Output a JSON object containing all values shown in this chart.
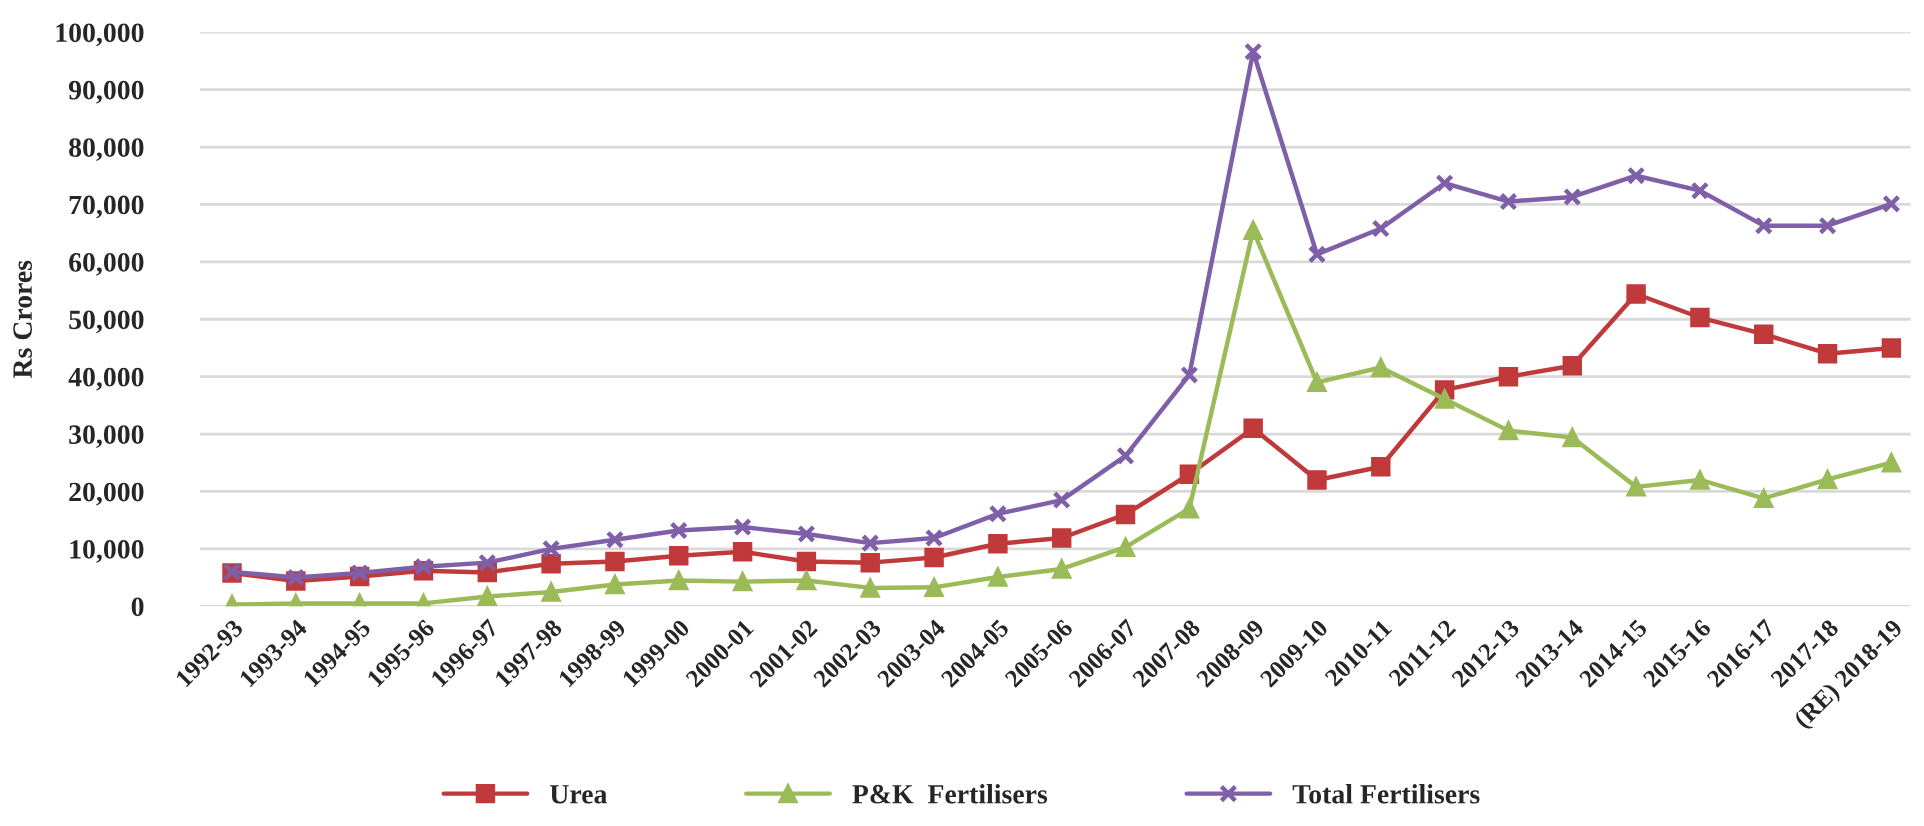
{
  "chart_data": {
    "type": "line",
    "ylabel": "Rs Crores",
    "categories": [
      "1992-93",
      "1993-94",
      "1994-95",
      "1995-96",
      "1996-97",
      "1997-98",
      "1998-99",
      "1999-00",
      "2000-01",
      "2001-02",
      "2002-03",
      "2003-04",
      "2004-05",
      "2005-06",
      "2006-07",
      "2007-08",
      "2008-09",
      "2009-10",
      "2010-11",
      "2011-12",
      "2012-13",
      "2013-14",
      "2014-15",
      "2015-16",
      "2016-17",
      "2017-18",
      "(RE) 2018-19"
    ],
    "series": [
      {
        "name": "Urea",
        "color": "#c0393b",
        "marker": "square",
        "values": [
          5800,
          4400,
          5200,
          6200,
          5900,
          7400,
          7800,
          8800,
          9500,
          7800,
          7600,
          8500,
          10900,
          11900,
          16000,
          23000,
          31000,
          22000,
          24300,
          37700,
          40000,
          41900,
          54400,
          50300,
          47400,
          44000,
          45000
        ]
      },
      {
        "name": "P&K  Fertilisers",
        "color": "#9bbb59",
        "marker": "triangle",
        "values": [
          300,
          500,
          500,
          500,
          1700,
          2500,
          3800,
          4500,
          4300,
          4500,
          3200,
          3300,
          5100,
          6500,
          10300,
          17000,
          65500,
          39000,
          41600,
          36100,
          30600,
          29400,
          20800,
          22000,
          18800,
          22100,
          25000
        ]
      },
      {
        "name": "Total Fertilisers",
        "color": "#7f5fa8",
        "marker": "cross",
        "values": [
          6000,
          5000,
          5800,
          6900,
          7600,
          10000,
          11600,
          13200,
          13800,
          12600,
          11000,
          11900,
          16100,
          18500,
          26200,
          40300,
          96600,
          61300,
          65800,
          73700,
          70500,
          71300,
          75000,
          72400,
          66300,
          66300,
          70100
        ]
      }
    ],
    "ylim": [
      0,
      100000
    ],
    "yticks": [
      0,
      {
        "value": 10000,
        "label": "10,000"
      },
      {
        "value": 20000,
        "label": "20,000"
      },
      {
        "value": 30000,
        "label": "30,000"
      },
      {
        "value": 40000,
        "label": "40,000"
      },
      {
        "value": 50000,
        "label": "50,000"
      },
      {
        "value": 60000,
        "label": "60,000"
      },
      {
        "value": 70000,
        "label": "70,000"
      },
      {
        "value": 80000,
        "label": "80,000"
      },
      {
        "value": 90000,
        "label": "90,000"
      },
      {
        "value": 100000,
        "label": "100,000"
      }
    ],
    "grid": "y",
    "legend": "bottom",
    "line_style": "solid"
  }
}
